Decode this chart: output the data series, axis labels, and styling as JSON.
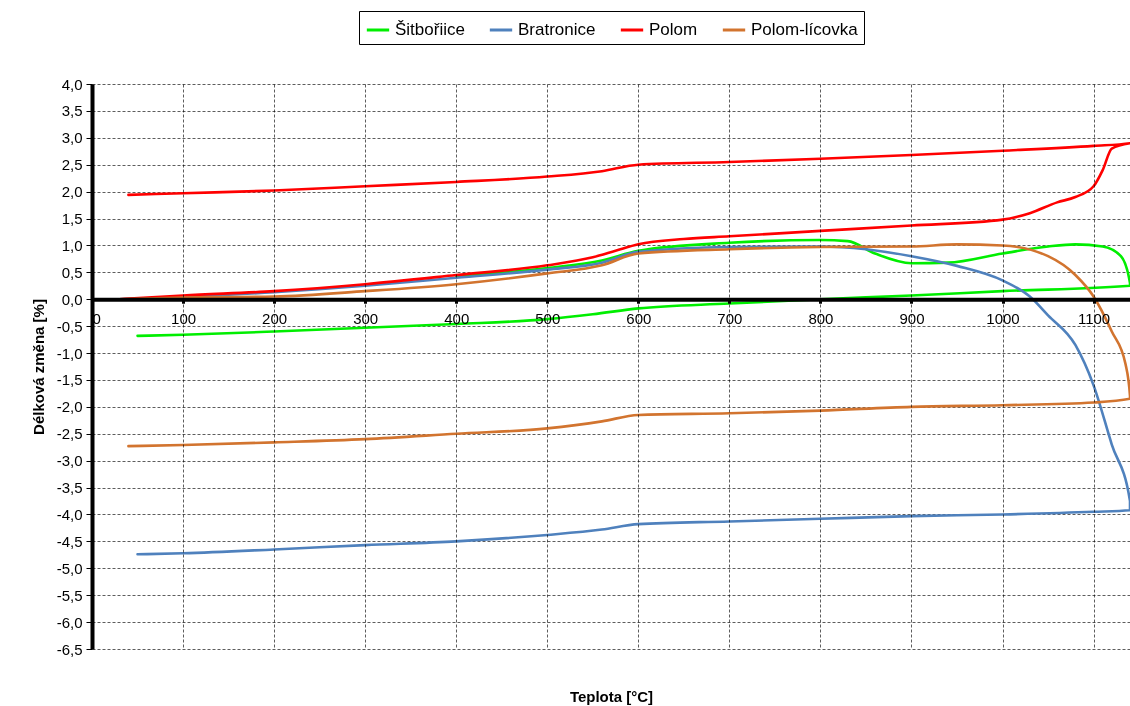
{
  "chart_data": {
    "type": "line",
    "xlabel": "Teplota [°C]",
    "ylabel": "Délková změna [%]",
    "xlim": [
      0,
      1140
    ],
    "xticks": [
      0,
      100,
      200,
      300,
      400,
      500,
      600,
      700,
      800,
      900,
      1000,
      1100
    ],
    "ylim": [
      -6.5,
      4
    ],
    "yticks": [
      {
        "value": 4,
        "label": "4,0"
      },
      {
        "value": 3.5,
        "label": "3,5"
      },
      {
        "value": 3,
        "label": "3,0"
      },
      {
        "value": 2.5,
        "label": "2,5"
      },
      {
        "value": 2,
        "label": "2,0"
      },
      {
        "value": 1.5,
        "label": "1,5"
      },
      {
        "value": 1,
        "label": "1,0"
      },
      {
        "value": 0.5,
        "label": "0,5"
      },
      {
        "value": 0,
        "label": "0,0"
      },
      {
        "value": -0.5,
        "label": "-0,5"
      },
      {
        "value": -1,
        "label": "-1,0"
      },
      {
        "value": -1.5,
        "label": "-1,5"
      },
      {
        "value": -2,
        "label": "-2,0"
      },
      {
        "value": -2.5,
        "label": "-2,5"
      },
      {
        "value": -3,
        "label": "-3,0"
      },
      {
        "value": -3.5,
        "label": "-3,5"
      },
      {
        "value": -4,
        "label": "-4,0"
      },
      {
        "value": -4.5,
        "label": "-4,5"
      },
      {
        "value": -5,
        "label": "-5,0"
      },
      {
        "value": -5.5,
        "label": "-5,5"
      },
      {
        "value": -6,
        "label": "-6,0"
      },
      {
        "value": -6.5,
        "label": "-6,5"
      }
    ],
    "grid": true,
    "legend": "top",
    "marker": "none",
    "line_style": "solid",
    "series": [
      {
        "name": "Šitbořiice",
        "color": "#00ee00",
        "x": [
          400,
          500,
          560,
          600,
          700,
          800,
          830,
          860,
          900,
          940,
          1000,
          1050,
          1080,
          1110,
          1130,
          1140,
          1140,
          1000,
          900,
          800,
          700,
          600,
          550,
          500,
          400,
          300,
          200,
          100,
          50
        ],
        "values": [
          0.42,
          0.58,
          0.72,
          0.9,
          1.05,
          1.1,
          1.08,
          0.85,
          0.67,
          0.68,
          0.85,
          0.98,
          1.02,
          0.98,
          0.8,
          0.3,
          0.25,
          0.15,
          0.07,
          0,
          -0.08,
          -0.17,
          -0.28,
          -0.37,
          -0.46,
          -0.53,
          -0.6,
          -0.66,
          -0.68
        ]
      },
      {
        "name": "Bratronice",
        "color": "#4f81bd",
        "x": [
          30,
          200,
          300,
          400,
          500,
          560,
          600,
          700,
          800,
          850,
          900,
          950,
          1000,
          1030,
          1050,
          1080,
          1100,
          1120,
          1140,
          1140,
          1100,
          1000,
          900,
          800,
          700,
          600,
          560,
          500,
          400,
          300,
          200,
          100,
          50
        ],
        "values": [
          0,
          0.13,
          0.25,
          0.4,
          0.55,
          0.68,
          0.88,
          0.97,
          0.98,
          0.93,
          0.8,
          0.62,
          0.35,
          0.05,
          -0.3,
          -0.85,
          -1.6,
          -2.7,
          -3.75,
          -3.92,
          -3.95,
          -4,
          -4.03,
          -4.08,
          -4.13,
          -4.18,
          -4.28,
          -4.38,
          -4.5,
          -4.57,
          -4.65,
          -4.72,
          -4.74
        ]
      },
      {
        "name": "Polom",
        "color": "#ff0000",
        "x": [
          30,
          100,
          200,
          300,
          400,
          500,
          550,
          575,
          600,
          650,
          700,
          800,
          900,
          1000,
          1030,
          1060,
          1080,
          1100,
          1110,
          1120,
          1140,
          1140,
          1100,
          1000,
          900,
          800,
          700,
          600,
          560,
          500,
          400,
          300,
          200,
          100,
          40
        ],
        "values": [
          0,
          0.07,
          0.15,
          0.28,
          0.45,
          0.63,
          0.78,
          0.9,
          1.02,
          1.12,
          1.17,
          1.27,
          1.37,
          1.48,
          1.6,
          1.8,
          1.9,
          2.1,
          2.4,
          2.8,
          2.9,
          2.9,
          2.85,
          2.76,
          2.68,
          2.61,
          2.55,
          2.5,
          2.38,
          2.28,
          2.18,
          2.1,
          2.02,
          1.97,
          1.94
        ]
      },
      {
        "name": "Polom-lícovka",
        "color": "#d2742f",
        "x": [
          30,
          100,
          200,
          300,
          400,
          500,
          560,
          600,
          700,
          800,
          900,
          950,
          1000,
          1050,
          1080,
          1100,
          1120,
          1135,
          1140,
          1140,
          1100,
          1000,
          900,
          800,
          700,
          600,
          560,
          500,
          400,
          300,
          200,
          100,
          40
        ],
        "values": [
          0,
          0.03,
          0.05,
          0.15,
          0.28,
          0.48,
          0.63,
          0.85,
          0.93,
          0.97,
          0.98,
          1.02,
          1,
          0.8,
          0.45,
          0.05,
          -0.6,
          -1.2,
          -1.8,
          -1.85,
          -1.92,
          -1.97,
          -2,
          -2.07,
          -2.12,
          -2.15,
          -2.27,
          -2.4,
          -2.5,
          -2.6,
          -2.66,
          -2.71,
          -2.73
        ]
      }
    ]
  }
}
